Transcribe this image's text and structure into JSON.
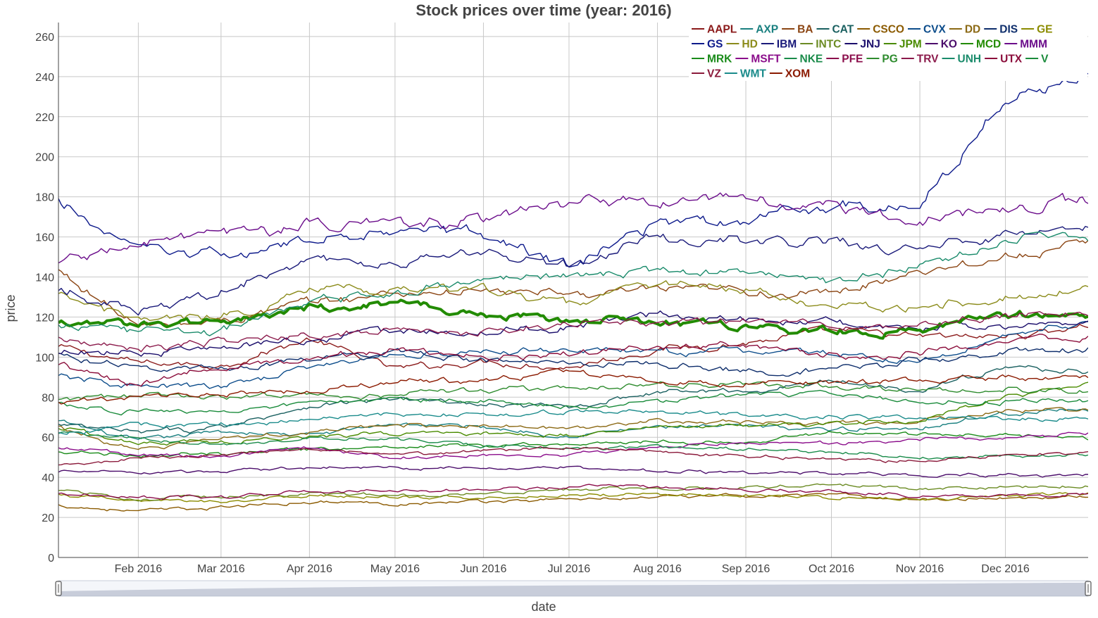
{
  "chart_data": {
    "type": "line",
    "title": "Stock prices over time (year: 2016)",
    "xlabel": "date",
    "ylabel": "price",
    "ylim": [
      0,
      267
    ],
    "xlim": [
      "2016-01-04",
      "2016-12-30"
    ],
    "yticks": [
      0,
      20,
      40,
      60,
      80,
      100,
      120,
      140,
      160,
      180,
      200,
      220,
      240,
      260
    ],
    "xticks": [
      {
        "date": "2016-02-01",
        "label": "Feb 2016"
      },
      {
        "date": "2016-03-01",
        "label": "Mar 2016"
      },
      {
        "date": "2016-04-01",
        "label": "Apr 2016"
      },
      {
        "date": "2016-05-01",
        "label": "May 2016"
      },
      {
        "date": "2016-06-01",
        "label": "Jun 2016"
      },
      {
        "date": "2016-07-01",
        "label": "Jul 2016"
      },
      {
        "date": "2016-08-01",
        "label": "Aug 2016"
      },
      {
        "date": "2016-09-01",
        "label": "Sep 2016"
      },
      {
        "date": "2016-10-01",
        "label": "Oct 2016"
      },
      {
        "date": "2016-11-01",
        "label": "Nov 2016"
      },
      {
        "date": "2016-12-01",
        "label": "Dec 2016"
      }
    ],
    "grid": true,
    "legend_position": "top-right",
    "range_slider": true,
    "highlight_series": "MCD",
    "key_dates": [
      "2016-01-04",
      "2016-02-01",
      "2016-03-01",
      "2016-04-01",
      "2016-05-01",
      "2016-06-01",
      "2016-07-01",
      "2016-08-01",
      "2016-09-01",
      "2016-10-01",
      "2016-11-01",
      "2016-12-01",
      "2016-12-30"
    ],
    "series": [
      {
        "name": "AAPL",
        "color": "#8b1a1a",
        "values": [
          105,
          97,
          96,
          109,
          94,
          98,
          95,
          104,
          107,
          113,
          110,
          110,
          116
        ]
      },
      {
        "name": "AXP",
        "color": "#1a8080",
        "values": [
          68,
          58,
          63,
          61,
          67,
          65,
          61,
          65,
          65,
          64,
          65,
          72,
          74
        ]
      },
      {
        "name": "BA",
        "color": "#8b4513",
        "values": [
          143,
          115,
          118,
          127,
          132,
          133,
          131,
          133,
          133,
          131,
          144,
          150,
          156
        ]
      },
      {
        "name": "CAT",
        "color": "#1a6060",
        "values": [
          66,
          62,
          65,
          76,
          79,
          76,
          75,
          83,
          83,
          88,
          84,
          95,
          93
        ]
      },
      {
        "name": "CSCO",
        "color": "#8b5a00",
        "values": [
          26,
          23,
          25,
          28,
          27,
          28,
          29,
          30,
          31,
          31,
          29,
          30,
          30
        ]
      },
      {
        "name": "CVX",
        "color": "#0d4d8b",
        "values": [
          90,
          85,
          85,
          95,
          101,
          102,
          104,
          102,
          103,
          102,
          97,
          111,
          118
        ]
      },
      {
        "name": "DD",
        "color": "#8b6914",
        "values": [
          65,
          53,
          60,
          62,
          66,
          66,
          64,
          69,
          67,
          67,
          68,
          73,
          74
        ]
      },
      {
        "name": "DIS",
        "color": "#0d2d6b",
        "values": [
          101,
          94,
          95,
          98,
          104,
          98,
          97,
          97,
          93,
          93,
          98,
          103,
          104
        ]
      },
      {
        "name": "GE",
        "color": "#8b8b00",
        "values": [
          31,
          28,
          28,
          31,
          30,
          30,
          31,
          32,
          31,
          30,
          29,
          31,
          32
        ]
      },
      {
        "name": "GS",
        "color": "#0d1a8b",
        "values": [
          177,
          153,
          150,
          158,
          165,
          161,
          145,
          167,
          168,
          176,
          176,
          230,
          240
        ]
      },
      {
        "name": "HD",
        "color": "#8b8b1a",
        "values": [
          130,
          118,
          120,
          133,
          134,
          134,
          126,
          137,
          134,
          123,
          125,
          130,
          134
        ]
      },
      {
        "name": "IBM",
        "color": "#1a1a7a",
        "values": [
          135,
          122,
          133,
          150,
          147,
          152,
          145,
          160,
          158,
          157,
          153,
          162,
          166
        ]
      },
      {
        "name": "INTC",
        "color": "#6b8b23",
        "values": [
          34,
          29,
          30,
          32,
          31,
          32,
          34,
          35,
          35,
          37,
          34,
          35,
          36
        ]
      },
      {
        "name": "JNJ",
        "color": "#1a0d6b",
        "values": [
          103,
          102,
          104,
          109,
          112,
          113,
          115,
          122,
          119,
          117,
          114,
          115,
          115
        ]
      },
      {
        "name": "JPM",
        "color": "#4a8b00",
        "values": [
          65,
          57,
          58,
          60,
          62,
          62,
          61,
          66,
          66,
          67,
          69,
          80,
          86
        ]
      },
      {
        "name": "KO",
        "color": "#4b0d6b",
        "values": [
          43,
          42,
          43,
          45,
          45,
          44,
          45,
          43,
          42,
          42,
          41,
          41,
          41
        ]
      },
      {
        "name": "MCD",
        "color": "#228b00",
        "values": [
          118,
          116,
          117,
          125,
          127,
          121,
          119,
          117,
          115,
          113,
          113,
          121,
          122
        ]
      },
      {
        "name": "MMM",
        "color": "#6b0d8b",
        "values": [
          148,
          156,
          160,
          166,
          167,
          168,
          176,
          179,
          179,
          176,
          168,
          174,
          178
        ]
      },
      {
        "name": "MRK",
        "color": "#1a8b1a",
        "values": [
          53,
          51,
          52,
          54,
          55,
          56,
          57,
          58,
          57,
          62,
          61,
          61,
          59
        ]
      },
      {
        "name": "MSFT",
        "color": "#8b0d8b",
        "values": [
          55,
          51,
          51,
          55,
          50,
          51,
          51,
          56,
          57,
          57,
          59,
          60,
          62
        ]
      },
      {
        "name": "NKE",
        "color": "#1a8b4a",
        "values": [
          62,
          60,
          56,
          60,
          59,
          56,
          55,
          55,
          54,
          53,
          50,
          51,
          51
        ]
      },
      {
        "name": "PFE",
        "color": "#8b0d4b",
        "values": [
          32,
          30,
          30,
          33,
          33,
          34,
          35,
          35,
          34,
          33,
          31,
          31,
          32
        ]
      },
      {
        "name": "PG",
        "color": "#2d8b2d",
        "values": [
          79,
          80,
          80,
          81,
          81,
          84,
          85,
          86,
          87,
          86,
          83,
          84,
          84
        ]
      },
      {
        "name": "TRV",
        "color": "#8b1a4b",
        "values": [
          110,
          104,
          108,
          110,
          114,
          112,
          118,
          116,
          118,
          115,
          117,
          121,
          122
        ]
      },
      {
        "name": "UNH",
        "color": "#1a8b6b",
        "values": [
          116,
          112,
          113,
          127,
          133,
          139,
          141,
          143,
          140,
          137,
          145,
          159,
          160
        ]
      },
      {
        "name": "UTX",
        "color": "#8b0d3b",
        "values": [
          96,
          86,
          96,
          100,
          104,
          100,
          102,
          106,
          106,
          101,
          102,
          109,
          110
        ]
      },
      {
        "name": "V",
        "color": "#1a8b3b",
        "values": [
          77,
          72,
          74,
          77,
          79,
          78,
          74,
          78,
          81,
          82,
          78,
          78,
          78
        ]
      },
      {
        "name": "VZ",
        "color": "#8b1a3b",
        "values": [
          46,
          49,
          51,
          54,
          51,
          53,
          55,
          52,
          51,
          49,
          48,
          51,
          53
        ]
      },
      {
        "name": "WMT",
        "color": "#1a8b8b",
        "values": [
          62,
          66,
          67,
          68,
          72,
          71,
          73,
          73,
          71,
          70,
          70,
          69,
          69
        ]
      },
      {
        "name": "XOM",
        "color": "#8b1a00",
        "values": [
          77,
          79,
          82,
          83,
          88,
          88,
          93,
          87,
          87,
          87,
          88,
          90,
          90
        ]
      }
    ]
  }
}
